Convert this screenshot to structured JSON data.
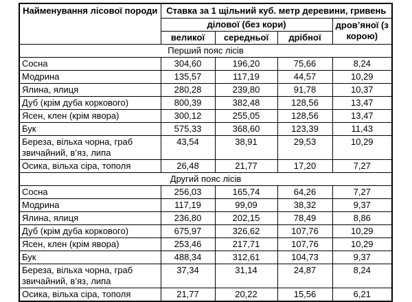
{
  "table": {
    "headers": {
      "species": "Найменування лісової породи",
      "rate": "Ставка за 1 щільний куб. метр деревини, гривень",
      "business": "ділової (без кори)",
      "firewood": "дров’яної (з корою)",
      "size_big": "великої",
      "size_medium": "середньої",
      "size_small": "дрібної"
    },
    "sections": [
      {
        "title": "Перший пояс лісів",
        "rows": [
          {
            "name": "Сосна",
            "values": [
              "304,60",
              "196,20",
              "75,66",
              "8,24"
            ]
          },
          {
            "name": "Модрина",
            "values": [
              "135,57",
              "117,19",
              "44,57",
              "10,29"
            ]
          },
          {
            "name": "Ялина, ялиця",
            "values": [
              "280,28",
              "239,80",
              "91,78",
              "10,37"
            ]
          },
          {
            "name": "Дуб (крім дуба коркового)",
            "values": [
              "800,39",
              "382,48",
              "128,56",
              "13,47"
            ]
          },
          {
            "name": "Ясен, клен (крім явора)",
            "values": [
              "300,12",
              "255,05",
              "128,56",
              "13,47"
            ]
          },
          {
            "name": "Бук",
            "values": [
              "575,33",
              "368,60",
              "123,39",
              "11,43"
            ]
          },
          {
            "name": "Береза, вільха чорна, граб звичайний, в’яз, липа",
            "values": [
              "43,54",
              "38,91",
              "29,53",
              "10,29"
            ]
          },
          {
            "name": "Осика, вільха сіра, тополя",
            "values": [
              "26,48",
              "21,77",
              "17,20",
              "7,27"
            ]
          }
        ]
      },
      {
        "title": "Другий пояс лісів",
        "rows": [
          {
            "name": "Сосна",
            "values": [
              "256,03",
              "165,74",
              "64,26",
              "7,27"
            ]
          },
          {
            "name": "Модрина",
            "values": [
              "117,19",
              "99,09",
              "38,32",
              "9,37"
            ]
          },
          {
            "name": "Ялина, ялиця",
            "values": [
              "236,80",
              "202,15",
              "78,49",
              "8,86"
            ]
          },
          {
            "name": "Дуб (крім дуба коркового)",
            "values": [
              "675,97",
              "326,62",
              "107,76",
              "10,29"
            ]
          },
          {
            "name": "Ясен, клен (крім явора)",
            "values": [
              "253,46",
              "217,71",
              "107,76",
              "10,29"
            ]
          },
          {
            "name": "Бук",
            "values": [
              "488,34",
              "312,61",
              "104,73",
              "9,37"
            ]
          },
          {
            "name": "Береза, вільха чорна, граб звичайний, в’яз, липа",
            "values": [
              "37,34",
              "31,14",
              "24,87",
              "8,24"
            ]
          },
          {
            "name": "Осика, вільха сіра, тополя",
            "values": [
              "21,77",
              "20,22",
              "15,56",
              "6,21"
            ]
          }
        ]
      }
    ]
  }
}
